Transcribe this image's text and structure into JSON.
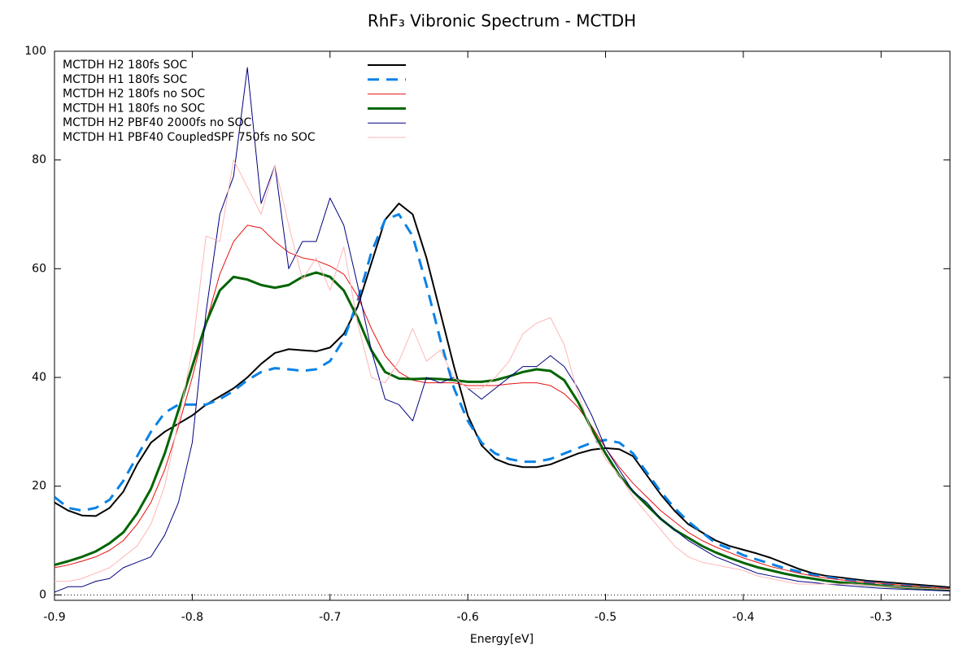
{
  "chart_data": {
    "type": "line",
    "title": "RhF₃ Vibronic Spectrum - MCTDH",
    "x_label": "Energy[eV]",
    "x": [
      -0.9,
      -0.89,
      -0.88,
      -0.87,
      -0.86,
      -0.85,
      -0.84,
      -0.83,
      -0.82,
      -0.81,
      -0.8,
      -0.79,
      -0.78,
      -0.77,
      -0.76,
      -0.75,
      -0.74,
      -0.73,
      -0.72,
      -0.71,
      -0.7,
      -0.69,
      -0.68,
      -0.67,
      -0.66,
      -0.65,
      -0.64,
      -0.63,
      -0.62,
      -0.61,
      -0.6,
      -0.59,
      -0.58,
      -0.57,
      -0.56,
      -0.55,
      -0.54,
      -0.53,
      -0.52,
      -0.51,
      -0.5,
      -0.49,
      -0.48,
      -0.47,
      -0.46,
      -0.45,
      -0.44,
      -0.43,
      -0.42,
      -0.41,
      -0.4,
      -0.39,
      -0.38,
      -0.37,
      -0.36,
      -0.35,
      -0.34,
      -0.33,
      -0.32,
      -0.31,
      -0.3,
      -0.29,
      -0.28,
      -0.27,
      -0.26,
      -0.25
    ],
    "series": [
      {
        "name": "MCTDH H2 180fs SOC",
        "color": "#000000",
        "line_width": 2,
        "dashed": false,
        "values": [
          17,
          15.5,
          14.6,
          14.5,
          16,
          19,
          24,
          28,
          30,
          31.5,
          33,
          35,
          36.5,
          38,
          40,
          42.5,
          44.5,
          45.2,
          45,
          44.8,
          45.5,
          48,
          53,
          61,
          69,
          72,
          70,
          62,
          52,
          42,
          33,
          27.5,
          25,
          24,
          23.5,
          23.5,
          24,
          25,
          26,
          26.7,
          27,
          26.8,
          25.5,
          22,
          18.5,
          15.5,
          13,
          11.5,
          10,
          9,
          8.3,
          7.6,
          6.8,
          5.8,
          4.8,
          4,
          3.5,
          3.2,
          2.9,
          2.6,
          2.4,
          2.2,
          2,
          1.8,
          1.6,
          1.4
        ]
      },
      {
        "name": "MCTDH H1 180fs SOC",
        "color": "#0a82e6",
        "line_width": 3,
        "dashed": true,
        "values": [
          18,
          16,
          15.5,
          16,
          17.5,
          21,
          25.5,
          30,
          33.5,
          35,
          35,
          35,
          36,
          37.5,
          39.5,
          41,
          41.7,
          41.5,
          41.2,
          41.5,
          43,
          47,
          54,
          63,
          69,
          70,
          66,
          57,
          47,
          38,
          32,
          28,
          26,
          25,
          24.5,
          24.5,
          25,
          26,
          27,
          28,
          28.5,
          28,
          26,
          22.5,
          19,
          16,
          13.5,
          11.5,
          9.5,
          8.5,
          7.3,
          6.5,
          5.7,
          4.9,
          4.3,
          3.7,
          3.3,
          2.9,
          2.6,
          2.3,
          2.1,
          1.9,
          1.7,
          1.5,
          1.3,
          1.1
        ]
      },
      {
        "name": "MCTDH H2 180fs no SOC",
        "color": "#e81010",
        "line_width": 1,
        "dashed": false,
        "values": [
          5,
          5.5,
          6.2,
          7,
          8.2,
          10,
          13,
          17,
          23,
          31,
          40,
          50,
          59,
          65,
          68,
          67.5,
          65,
          63,
          62,
          61.5,
          60.5,
          59,
          55,
          49,
          44,
          41,
          39.5,
          39,
          39,
          39,
          38.5,
          38.5,
          38.5,
          38.8,
          39,
          39,
          38.5,
          37,
          34.5,
          31,
          27,
          23.5,
          20.5,
          18,
          15.5,
          13.5,
          11.5,
          10,
          8.8,
          7.8,
          6.8,
          6,
          5.2,
          4.6,
          4,
          3.5,
          3.1,
          2.8,
          2.5,
          2.3,
          2.1,
          1.9,
          1.7,
          1.5,
          1.3,
          1.2
        ]
      },
      {
        "name": "MCTDH H1 180fs no SOC",
        "color": "#006400",
        "line_width": 3,
        "dashed": false,
        "values": [
          5.5,
          6.2,
          7,
          8,
          9.5,
          11.5,
          15,
          19.5,
          26,
          34,
          42,
          50,
          56,
          58.5,
          58,
          57,
          56.5,
          57,
          58.5,
          59.3,
          58.5,
          56,
          51,
          45,
          41,
          39.8,
          39.7,
          39.8,
          39.7,
          39.5,
          39.2,
          39.2,
          39.5,
          40.2,
          41,
          41.5,
          41.2,
          39.5,
          35.5,
          30.5,
          26,
          22,
          19,
          16.5,
          14,
          12,
          10.5,
          9,
          7.8,
          6.8,
          5.9,
          5.1,
          4.5,
          3.9,
          3.4,
          3,
          2.6,
          2.3,
          2.1,
          1.9,
          1.7,
          1.5,
          1.3,
          1.2,
          1,
          0.9
        ]
      },
      {
        "name": "MCTDH H2 PBF40 2000fs no SOC",
        "color": "#000080",
        "line_width": 1,
        "dashed": false,
        "values": [
          0.5,
          1.5,
          1.5,
          2.5,
          3,
          5,
          6,
          7,
          11,
          17,
          28,
          52,
          70,
          77,
          97,
          72,
          79,
          60,
          65,
          65,
          73,
          68,
          57,
          45,
          36,
          35,
          32,
          40,
          39,
          40,
          38,
          36,
          38,
          40,
          42,
          42,
          44,
          42,
          38,
          33,
          27,
          23,
          19,
          17,
          14,
          12,
          10,
          8.5,
          7,
          6,
          5,
          4,
          3.5,
          3,
          2.5,
          2.3,
          2,
          1.8,
          1.6,
          1.4,
          1.2,
          1.1,
          1,
          0.9,
          0.8,
          0.7
        ]
      },
      {
        "name": "MCTDH H1 PBF40 CoupledSPF 750fs no SOC",
        "color": "#ffb6b6",
        "line_width": 1,
        "dashed": false,
        "values": [
          2.5,
          2.5,
          3,
          4,
          5,
          7,
          9,
          13,
          20,
          32,
          45,
          66,
          65,
          80,
          75,
          70,
          79,
          68,
          58,
          62,
          56,
          64,
          50,
          40,
          39,
          43,
          49,
          43,
          45,
          40,
          38,
          38,
          40,
          43,
          48,
          50,
          51,
          46,
          37,
          30,
          25,
          22,
          18,
          15,
          12,
          9,
          7,
          6,
          5.5,
          5,
          4.5,
          3.5,
          3,
          2.5,
          2,
          2,
          2,
          2,
          2,
          1.8,
          1.6,
          1.5,
          1.3,
          1.2,
          1.1,
          1
        ]
      }
    ],
    "xlim": [
      -0.9,
      -0.25
    ],
    "ylim": [
      -1,
      100
    ],
    "xticks": [
      -0.9,
      -0.8,
      -0.7,
      -0.6,
      -0.5,
      -0.4,
      -0.3
    ],
    "yticks": [
      0,
      20,
      40,
      60,
      80,
      100
    ],
    "zero_line": true,
    "legend": "top-left"
  }
}
